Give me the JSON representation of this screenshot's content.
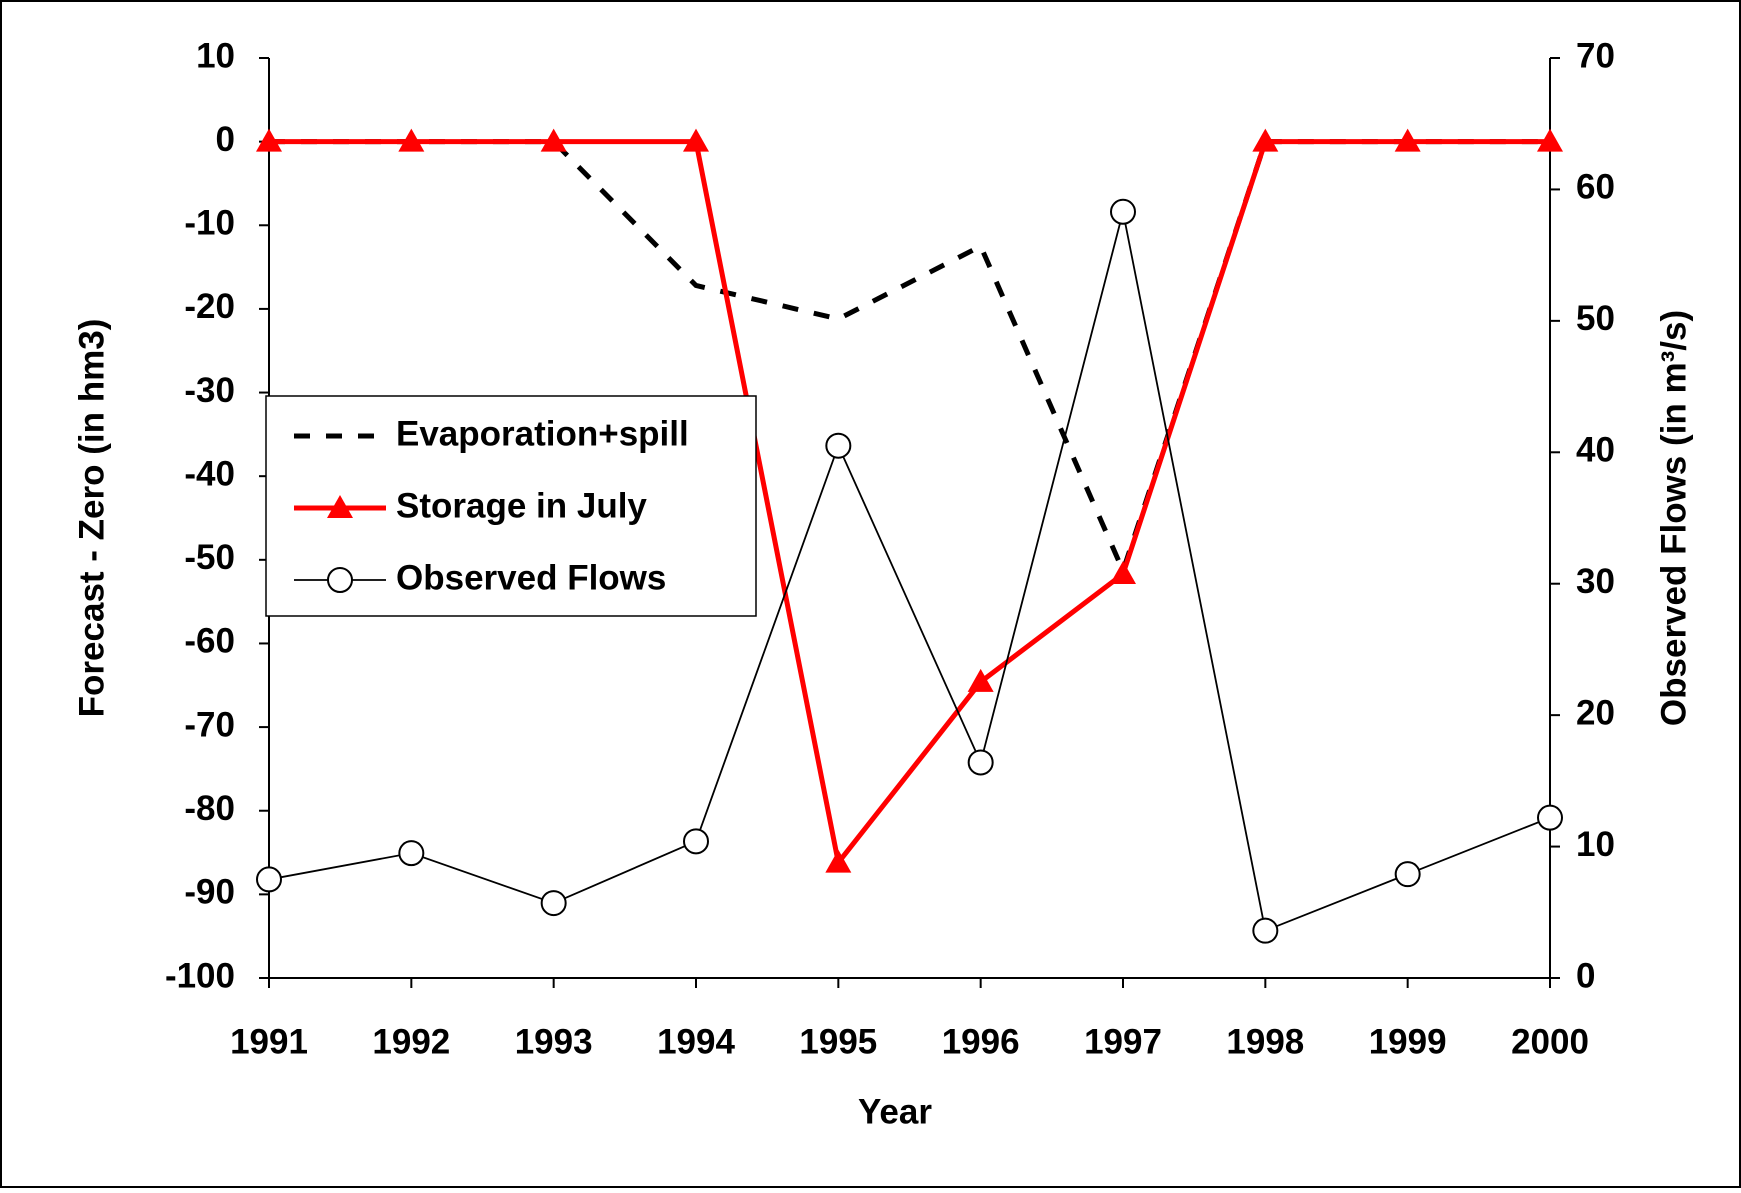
{
  "chart_data": {
    "type": "line",
    "categories": [
      "1991",
      "1992",
      "1993",
      "1994",
      "1995",
      "1996",
      "1997",
      "1998",
      "1999",
      "2000"
    ],
    "xlabel": "Year",
    "ylabel": "Forecast - Zero (in hm3)",
    "y2label": "Observed Flows (in m³/s)",
    "ylim": [
      -100,
      10
    ],
    "yticks": [
      -100,
      -90,
      -80,
      -70,
      -60,
      -50,
      -40,
      -30,
      -20,
      -10,
      0,
      10
    ],
    "y2lim": [
      0,
      70
    ],
    "y2ticks": [
      0,
      10,
      20,
      30,
      40,
      50,
      60,
      70
    ],
    "legend": "left",
    "series": [
      {
        "name": "Evaporation+spill",
        "color": "#000000",
        "line_style": "dashed",
        "marker": "none",
        "values": [
          0,
          0,
          0,
          -17.2,
          -21.2,
          -12.5,
          -51.3,
          0,
          0,
          0
        ]
      },
      {
        "name": "Storage in July",
        "color": "#ff0000",
        "line_style": "solid",
        "marker": "triangle",
        "values": [
          0,
          0,
          0,
          0,
          -86.2,
          -64.6,
          -51.7,
          0,
          0,
          0
        ]
      },
      {
        "name": "Observed Flows",
        "color": "#000000",
        "line_style": "thin",
        "marker": "circle",
        "axis": "y2",
        "values": [
          7.5,
          9.5,
          5.7,
          10.4,
          40.5,
          16.4,
          58.3,
          3.6,
          7.9,
          12.2
        ]
      }
    ]
  }
}
